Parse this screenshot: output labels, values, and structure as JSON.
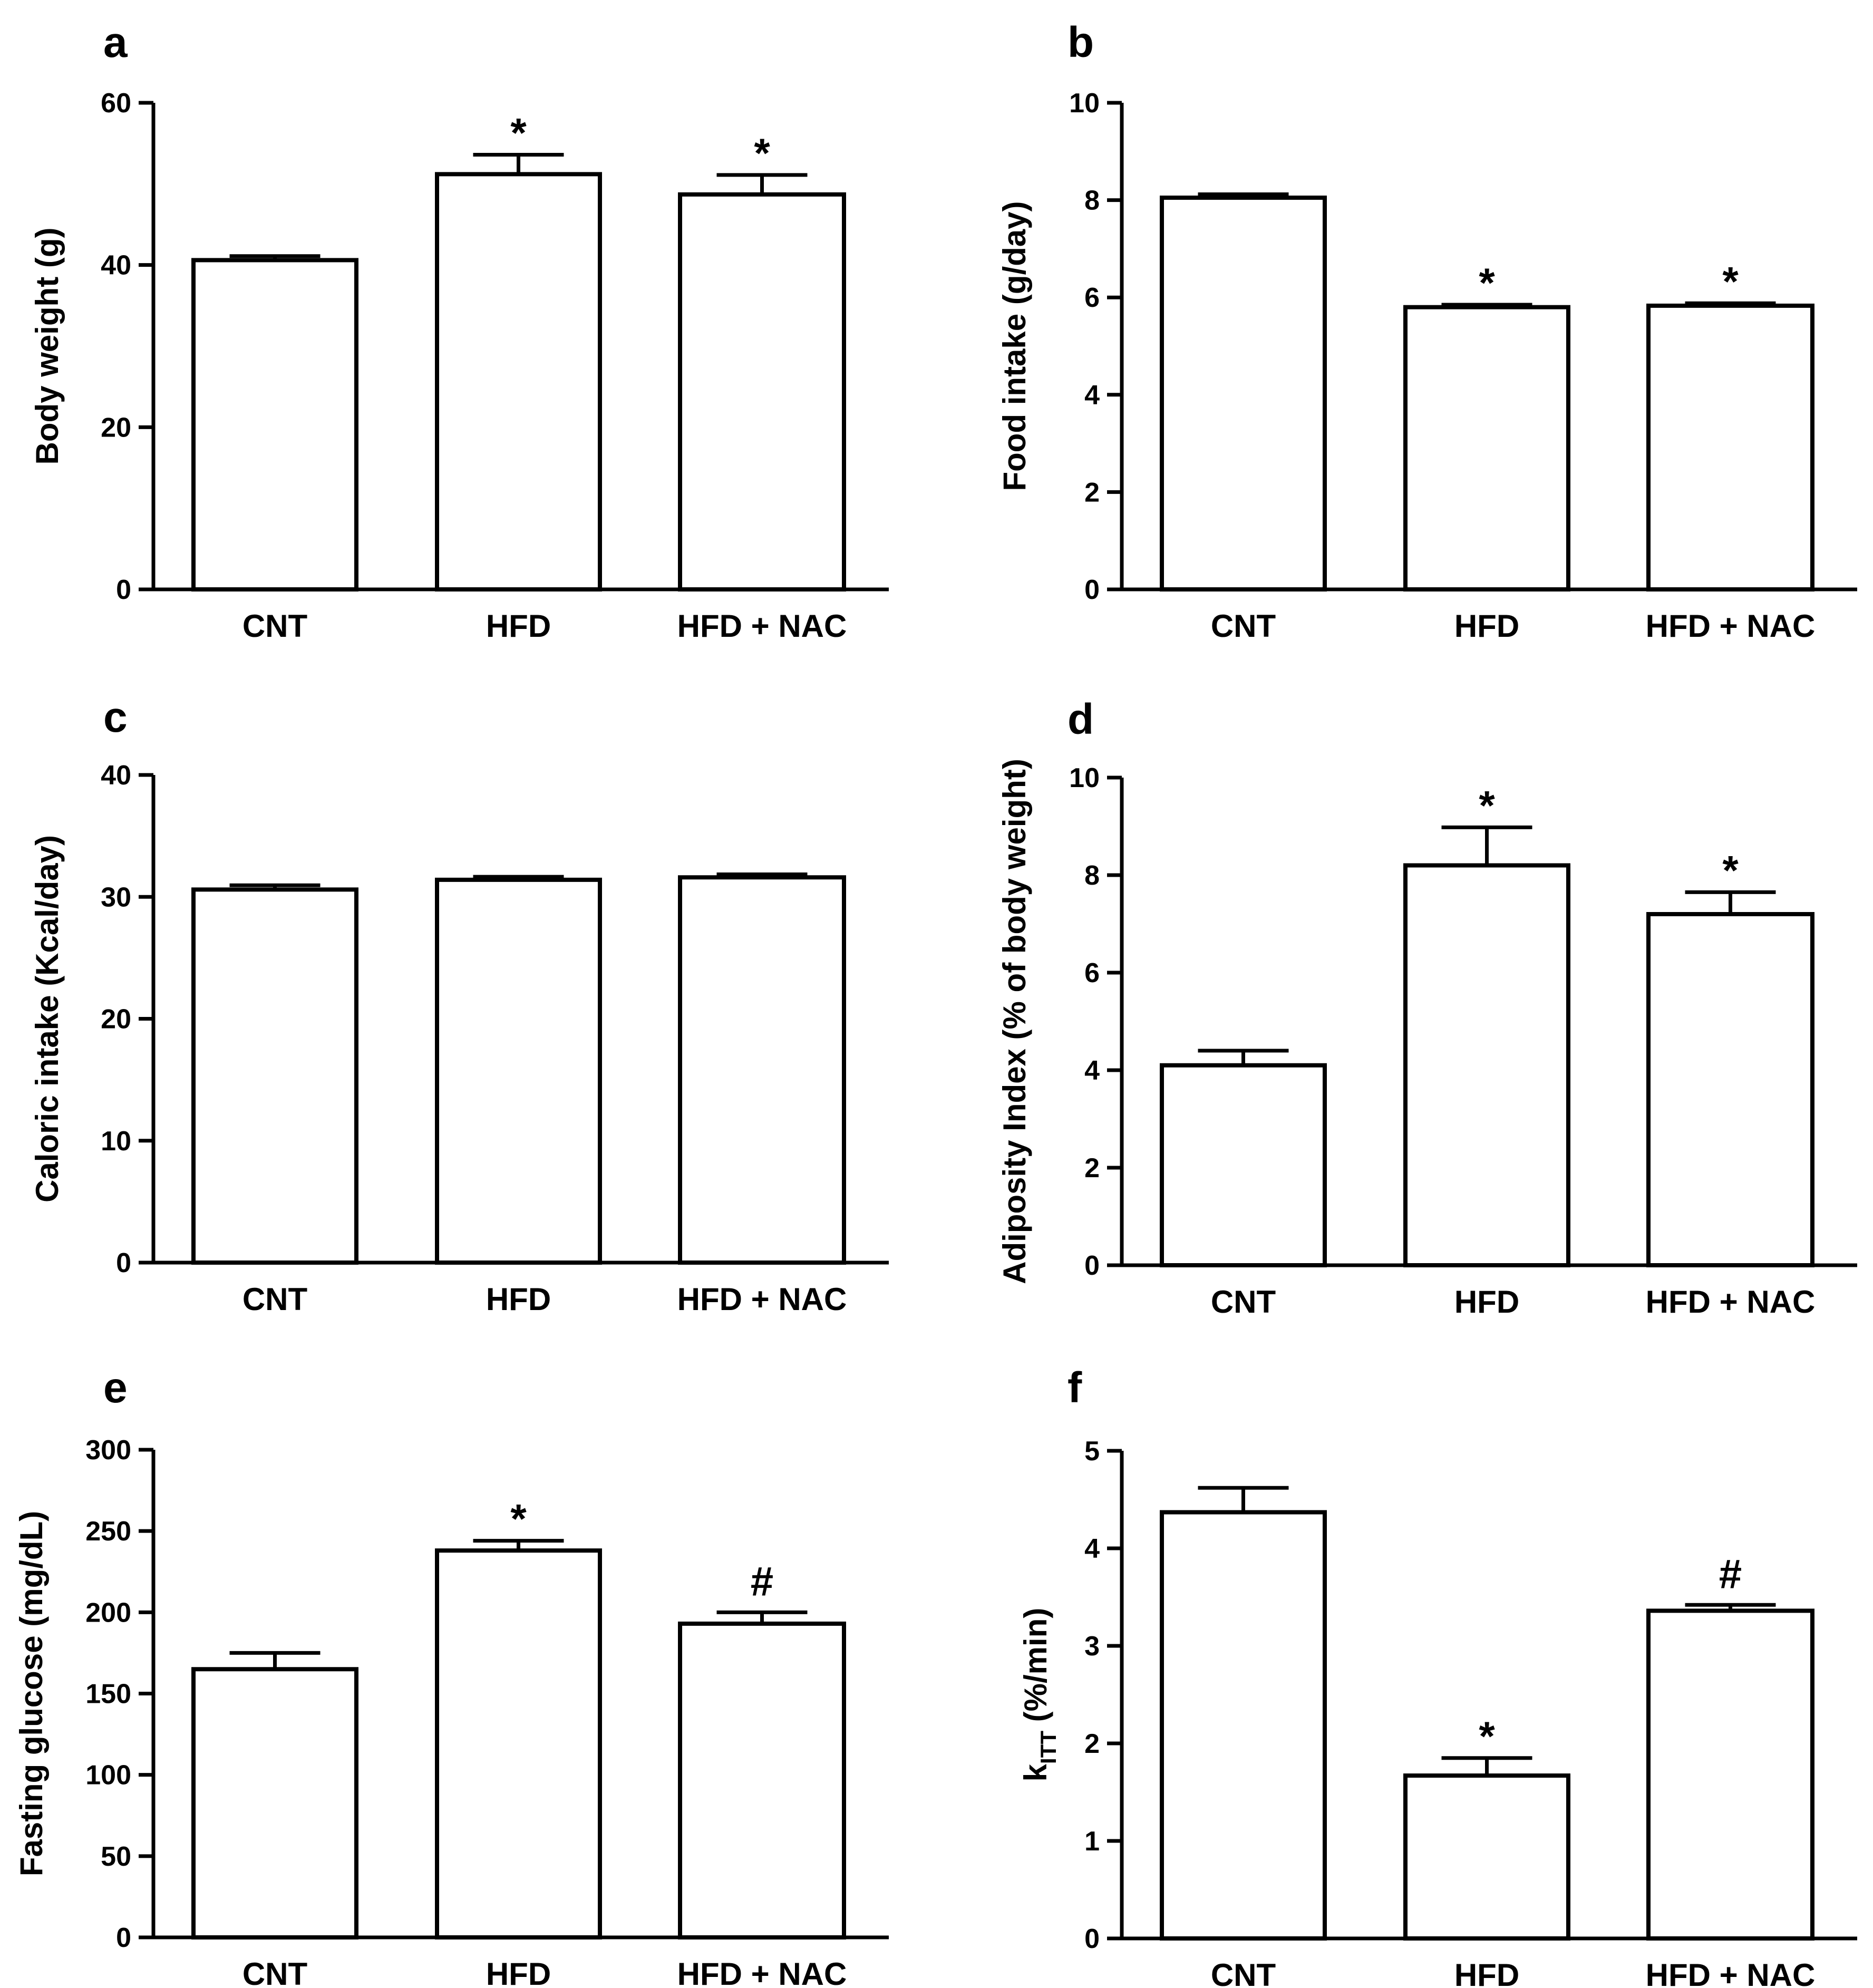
{
  "chart_data": [
    {
      "panel": "a",
      "type": "bar",
      "categories": [
        "CNT",
        "HFD",
        "HFD + NAC"
      ],
      "values": [
        40.6,
        51.2,
        48.7
      ],
      "errors": [
        0.5,
        2.4,
        2.4
      ],
      "annotations": [
        "",
        "*",
        "*"
      ],
      "ylabel": "Body weight (g)",
      "ylim": [
        0,
        60
      ],
      "yticks": [
        0,
        20,
        40,
        60
      ],
      "grid": false
    },
    {
      "panel": "b",
      "type": "bar",
      "categories": [
        "CNT",
        "HFD",
        "HFD + NAC"
      ],
      "values": [
        8.05,
        5.8,
        5.83
      ],
      "errors": [
        0.07,
        0.05,
        0.05
      ],
      "annotations": [
        "",
        "*",
        "*"
      ],
      "ylabel": "Food intake (g/day)",
      "ylim": [
        0,
        10
      ],
      "yticks": [
        0,
        2,
        4,
        6,
        8,
        10
      ],
      "grid": false
    },
    {
      "panel": "c",
      "type": "bar",
      "categories": [
        "CNT",
        "HFD",
        "HFD + NAC"
      ],
      "values": [
        30.6,
        31.4,
        31.6
      ],
      "errors": [
        0.35,
        0.25,
        0.25
      ],
      "annotations": [
        "",
        "",
        ""
      ],
      "ylabel": "Caloric intake (Kcal/day)",
      "ylim": [
        0,
        40
      ],
      "yticks": [
        0,
        10,
        20,
        30,
        40
      ],
      "grid": false
    },
    {
      "panel": "d",
      "type": "bar",
      "categories": [
        "CNT",
        "HFD",
        "HFD + NAC"
      ],
      "values": [
        4.1,
        8.2,
        7.2
      ],
      "errors": [
        0.3,
        0.78,
        0.45
      ],
      "annotations": [
        "",
        "*",
        "*"
      ],
      "ylabel": "Adiposity Index (% of body weight)",
      "ylim": [
        0,
        10
      ],
      "yticks": [
        0,
        2,
        4,
        6,
        8,
        10
      ],
      "grid": false
    },
    {
      "panel": "e",
      "type": "bar",
      "categories": [
        "CNT",
        "HFD",
        "HFD + NAC"
      ],
      "values": [
        165,
        238,
        193
      ],
      "errors": [
        10,
        6,
        7
      ],
      "annotations": [
        "",
        "*",
        "#"
      ],
      "ylabel": "Fasting glucose (mg/dL)",
      "ylim": [
        0,
        300
      ],
      "yticks": [
        0,
        50,
        100,
        150,
        200,
        250,
        300
      ],
      "grid": false
    },
    {
      "panel": "f",
      "type": "bar",
      "categories": [
        "CNT",
        "HFD",
        "HFD + NAC"
      ],
      "values": [
        4.37,
        1.67,
        3.36
      ],
      "errors": [
        0.25,
        0.18,
        0.06
      ],
      "annotations": [
        "",
        "*",
        "#"
      ],
      "ylabel_base": "k",
      "ylabel_sub": "ITT",
      "ylabel_rest": " (%/min)",
      "ylim": [
        0,
        5
      ],
      "yticks": [
        0,
        1,
        2,
        3,
        4,
        5
      ],
      "grid": false
    }
  ]
}
